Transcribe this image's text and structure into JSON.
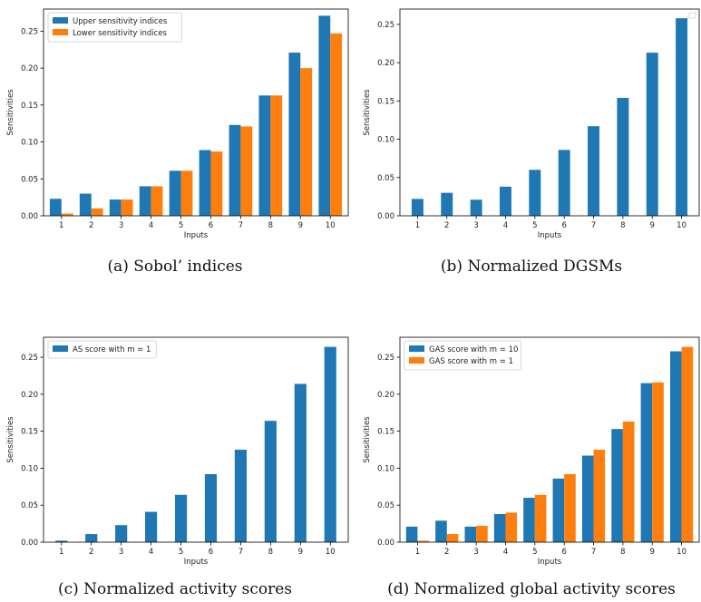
{
  "colors": {
    "blue": "#1f77b4",
    "orange": "#ff7f0e"
  },
  "chart_data": [
    {
      "id": "a",
      "type": "bar",
      "caption": "(a) Sobol’ indices",
      "xlabel": "Inputs",
      "ylabel": "Sensitivities",
      "ylim": [
        0,
        0.28
      ],
      "yticks": [
        "0.00",
        "0.05",
        "0.10",
        "0.15",
        "0.20",
        "0.25"
      ],
      "categories": [
        "1",
        "2",
        "3",
        "4",
        "5",
        "6",
        "7",
        "8",
        "9",
        "10"
      ],
      "legend": "top-left",
      "series": [
        {
          "name": "Upper sensitivity indices",
          "color": "#1f77b4",
          "values": [
            0.023,
            0.03,
            0.022,
            0.04,
            0.061,
            0.089,
            0.123,
            0.163,
            0.221,
            0.271
          ]
        },
        {
          "name": "Lower sensitivity indices",
          "color": "#ff7f0e",
          "values": [
            0.003,
            0.01,
            0.022,
            0.04,
            0.061,
            0.087,
            0.121,
            0.163,
            0.2,
            0.247
          ]
        }
      ]
    },
    {
      "id": "b",
      "type": "bar",
      "caption": "(b) Normalized DGSMs",
      "xlabel": "Inputs",
      "ylabel": "Sensitivities",
      "ylim": [
        0,
        0.27
      ],
      "yticks": [
        "0.00",
        "0.05",
        "0.10",
        "0.15",
        "0.20",
        "0.25"
      ],
      "categories": [
        "1",
        "2",
        "3",
        "4",
        "5",
        "6",
        "7",
        "8",
        "9",
        "10"
      ],
      "legend": "top-right",
      "series": [
        {
          "color": "#1f77b4",
          "values": [
            0.022,
            0.03,
            0.021,
            0.038,
            0.06,
            0.086,
            0.117,
            0.154,
            0.213,
            0.258
          ]
        }
      ]
    },
    {
      "id": "c",
      "type": "bar",
      "caption": "(c) Normalized activity scores",
      "xlabel": "Inputs",
      "ylabel": "Sensitivities",
      "ylim": [
        0,
        0.277
      ],
      "yticks": [
        "0.00",
        "0.05",
        "0.10",
        "0.15",
        "0.20",
        "0.25"
      ],
      "categories": [
        "1",
        "2",
        "3",
        "4",
        "5",
        "6",
        "7",
        "8",
        "9",
        "10"
      ],
      "legend": "top-left",
      "series": [
        {
          "name": "AS score with m = 1",
          "color": "#1f77b4",
          "values": [
            0.002,
            0.011,
            0.023,
            0.041,
            0.064,
            0.092,
            0.125,
            0.164,
            0.214,
            0.264
          ]
        }
      ]
    },
    {
      "id": "d",
      "type": "bar",
      "caption": "(d) Normalized global activity scores",
      "xlabel": "Inputs",
      "ylabel": "Sensitivities",
      "ylim": [
        0,
        0.277
      ],
      "yticks": [
        "0.00",
        "0.05",
        "0.10",
        "0.15",
        "0.20",
        "0.25"
      ],
      "categories": [
        "1",
        "2",
        "3",
        "4",
        "5",
        "6",
        "7",
        "8",
        "9",
        "10"
      ],
      "legend": "top-left",
      "series": [
        {
          "name": "GAS score with m = 10",
          "color": "#1f77b4",
          "values": [
            0.021,
            0.029,
            0.021,
            0.038,
            0.06,
            0.086,
            0.117,
            0.153,
            0.215,
            0.258
          ]
        },
        {
          "name": "GAS score with m = 1",
          "color": "#ff7f0e",
          "values": [
            0.002,
            0.011,
            0.022,
            0.04,
            0.064,
            0.092,
            0.125,
            0.163,
            0.216,
            0.264
          ]
        }
      ]
    }
  ]
}
